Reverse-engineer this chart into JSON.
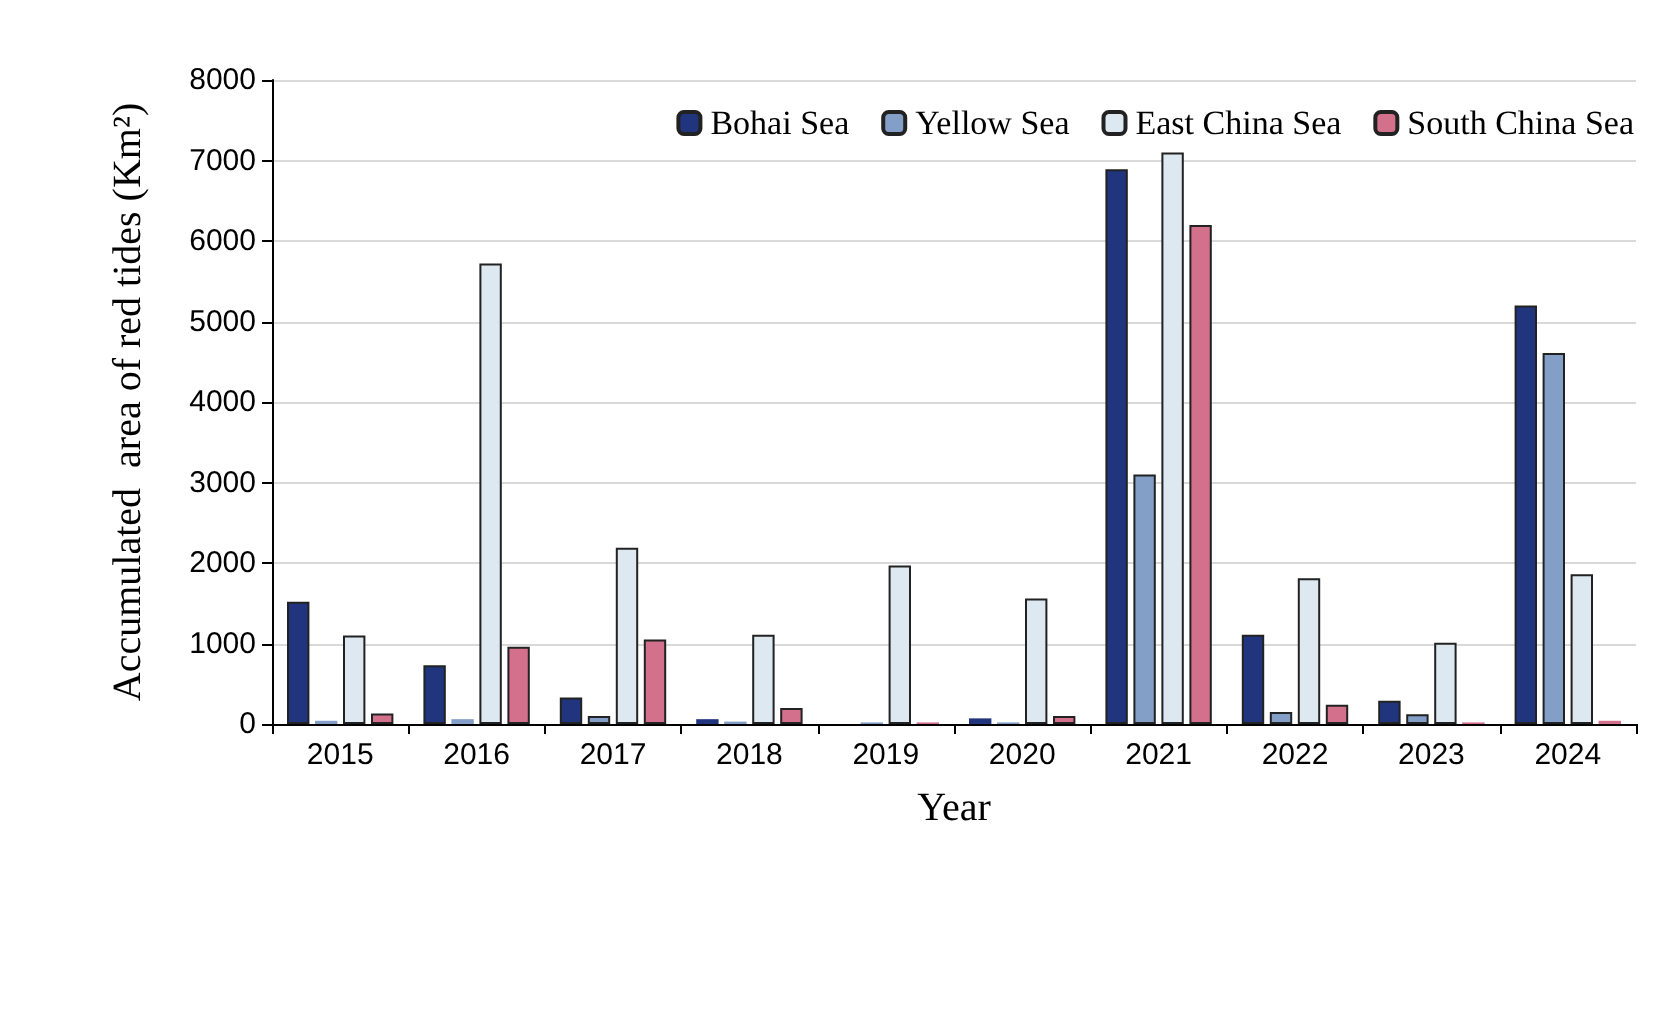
{
  "chart_data": {
    "type": "bar",
    "xlabel": "Year",
    "ylabel": "Accumulated  area of red tides (Km²)",
    "categories": [
      "2015",
      "2016",
      "2017",
      "2018",
      "2019",
      "2020",
      "2021",
      "2022",
      "2023",
      "2024"
    ],
    "series": [
      {
        "name": "Bohai Sea",
        "color": "#21357f",
        "values": [
          1520,
          730,
          330,
          60,
          null,
          70,
          6890,
          1110,
          290,
          5200
        ]
      },
      {
        "name": "Yellow Sea",
        "color": "#849fc7",
        "values": [
          40,
          60,
          100,
          30,
          20,
          20,
          3100,
          150,
          120,
          4610
        ]
      },
      {
        "name": "East China Sea",
        "color": "#dde8f0",
        "values": [
          1100,
          5720,
          2190,
          1110,
          1970,
          1560,
          7100,
          1810,
          1010,
          1860
        ]
      },
      {
        "name": "South China Sea",
        "color": "#d3708b",
        "values": [
          130,
          960,
          1050,
          200,
          20,
          100,
          6200,
          240,
          20,
          40
        ]
      }
    ],
    "ylim": [
      0,
      8000
    ],
    "yticks": [
      0,
      1000,
      2000,
      3000,
      4000,
      5000,
      6000,
      7000,
      8000
    ],
    "grid": "y",
    "legend": "top right"
  }
}
